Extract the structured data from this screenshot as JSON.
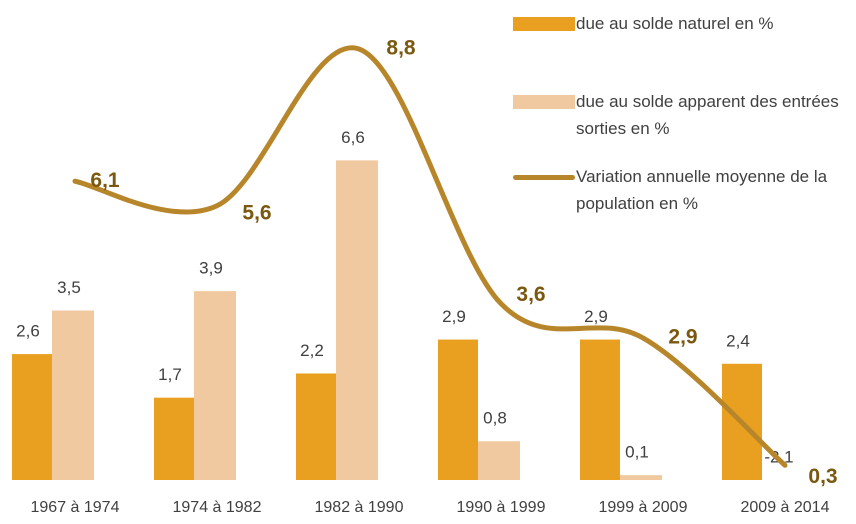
{
  "chart_data": {
    "type": "bar",
    "categories": [
      "1967 à 1974",
      "1974 à 1982",
      "1982 à 1990",
      "1990 à 1999",
      "1999 à 2009",
      "2009 à 2014"
    ],
    "ylim": [
      0,
      7
    ],
    "y2lim": [
      0,
      9.8
    ],
    "series": [
      {
        "name": "due au solde naturel en %",
        "type": "bar",
        "color": "#e9a020",
        "values": [
          2.6,
          1.7,
          2.2,
          2.9,
          2.9,
          2.4
        ],
        "value_labels": [
          "2,6",
          "1,7",
          "2,2",
          "2,9",
          "2,9",
          "2,4"
        ]
      },
      {
        "name": "due au solde apparent des entrées sorties en %",
        "type": "bar",
        "color": "#f0c9a0",
        "values": [
          3.5,
          3.9,
          6.6,
          0.8,
          0.1,
          -2.1
        ],
        "value_labels": [
          "3,5",
          "3,9",
          "6,6",
          "0,8",
          "0,1",
          "-2,1"
        ]
      },
      {
        "name": "Variation annuelle moyenne de la population en %",
        "type": "line",
        "axis": "y2",
        "color": "#b8862a",
        "values": [
          6.1,
          5.6,
          8.8,
          3.6,
          2.9,
          0.3
        ],
        "value_labels": [
          "6,1",
          "5,6",
          "8,8",
          "3,6",
          "2,9",
          "0,3"
        ]
      }
    ]
  }
}
